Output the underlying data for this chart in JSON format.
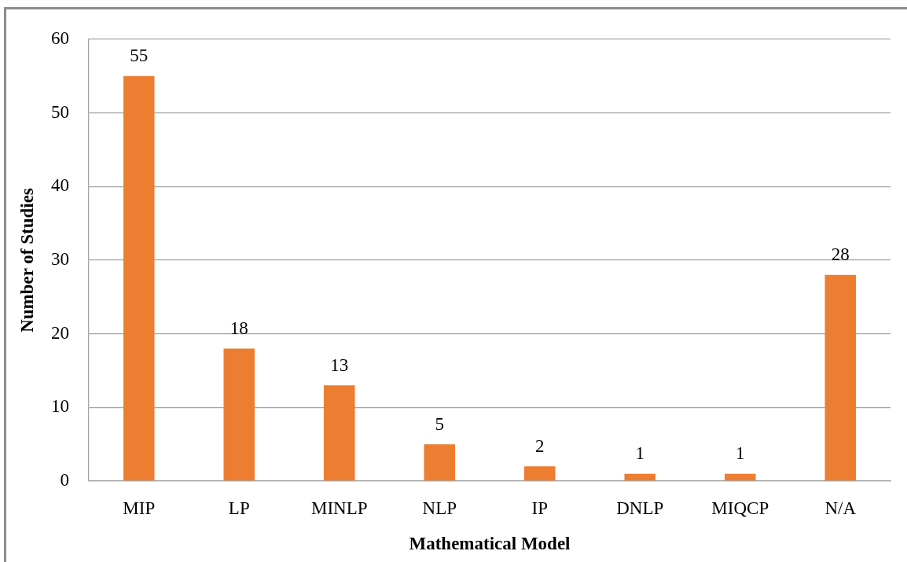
{
  "chart_data": {
    "type": "bar",
    "categories": [
      "MIP",
      "LP",
      "MINLP",
      "NLP",
      "IP",
      "DNLP",
      "MIQCP",
      "N/A"
    ],
    "values": [
      55,
      18,
      13,
      5,
      2,
      1,
      1,
      28
    ],
    "color": "#ed7d31",
    "xlabel": "Mathematical Model",
    "ylabel": "Number of Studies",
    "ylim": [
      0,
      60
    ],
    "yticks": [
      0,
      10,
      20,
      30,
      40,
      50,
      60
    ],
    "grid": "y",
    "data_labels": true
  }
}
